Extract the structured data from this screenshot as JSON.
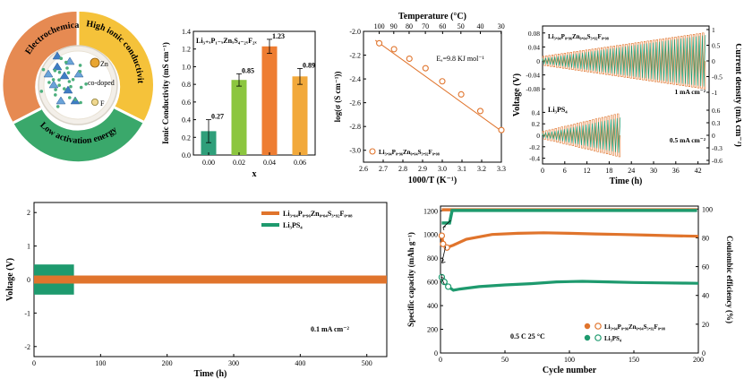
{
  "colors": {
    "orange": "#e0742c",
    "green": "#1e9a6e",
    "teal_dark": "#2a8a5e",
    "ring_orange": "#e68a52",
    "ring_yellow": "#f5c23a",
    "ring_green": "#3aa86b"
  },
  "schematic": {
    "ring_labels": [
      "Electrochemical stability",
      "High ionic conductivity",
      "Low activation energy"
    ],
    "dopant_zn": "Zn",
    "dopant_f": "F",
    "center_label": "co-doped"
  },
  "chart_data": [
    {
      "type": "bar",
      "inset_label": "Li₃₊ₓP₁₋ₓZnₓS₄₋₂ₓF₂ₓ",
      "xlabel": "x",
      "ylabel": "Ionic Conductivity (mS cm⁻¹)",
      "categories": [
        "0.00",
        "0.02",
        "0.04",
        "0.06"
      ],
      "values": [
        0.27,
        0.85,
        1.23,
        0.89
      ],
      "value_labels": [
        "0.27",
        "0.85",
        "1.23",
        "0.89"
      ],
      "errors": [
        0.13,
        0.07,
        0.08,
        0.09
      ],
      "ylim": [
        0.0,
        1.4
      ],
      "yticks": [
        "0.0",
        "0.2",
        "0.4",
        "0.6",
        "0.8",
        "1.0",
        "1.2",
        "1.4"
      ],
      "bar_colors": [
        "#2f9f7a",
        "#8cc63f",
        "#ee7d32",
        "#f2a93b"
      ]
    },
    {
      "type": "scatter",
      "xlabel": "1000/T (K⁻¹)",
      "ylabel": "log(σ (S cm⁻¹))",
      "top_xlabel": "Temperature (°C)",
      "top_ticks": [
        "100",
        "90",
        "80",
        "70",
        "60",
        "50",
        "40",
        "30"
      ],
      "xticks": [
        "2.6",
        "2.7",
        "2.8",
        "2.9",
        "3.0",
        "3.1",
        "3.2",
        "3.3"
      ],
      "yticks": [
        "-2.0",
        "-2.2",
        "-2.4",
        "-2.6",
        "-2.8",
        "-3.0"
      ],
      "xlim": [
        2.6,
        3.3
      ],
      "ylim": [
        -3.1,
        -2.0
      ],
      "annotation": "Eₐ=9.8 KJ mol⁻¹",
      "legend": "Li₃.₀₄P₀.₉₆Zn₀.₀₄S₃.₉₂F₀.₀₈",
      "x": [
        2.68,
        2.755,
        2.833,
        2.915,
        3.0,
        3.096,
        3.193,
        3.3
      ],
      "y": [
        -2.1,
        -2.15,
        -2.23,
        -2.31,
        -2.42,
        -2.53,
        -2.67,
        -2.83
      ],
      "fit": [
        [
          2.66,
          -2.075
        ],
        [
          3.31,
          -2.85
        ]
      ]
    },
    {
      "type": "line",
      "xlabel": "Time (h)",
      "ylabel": "Voltage (V)",
      "ylabel_right": "Current density (mA cm⁻²)",
      "xticks": [
        "0",
        "6",
        "12",
        "18",
        "24",
        "30",
        "36",
        "42"
      ],
      "xlim": [
        0,
        45
      ],
      "top": {
        "label": "Li₃.₀₄P₀.₉₆Zn₀.₀₄S₃.₉₂F₀.₀₈",
        "yticks": [
          "0.08",
          "0.04",
          "0",
          "-0.04",
          "-0.08"
        ],
        "ylim": [
          -0.1,
          0.1
        ],
        "right_ticks": [
          "1",
          "0.5",
          "0",
          "-0.5",
          "-1"
        ],
        "current_label": "1 mA cm⁻²",
        "voltage_max": 0.074,
        "current_max_fraction": 0.8,
        "duration_h": 44
      },
      "bottom": {
        "label": "Li₃PS₄",
        "yticks": [
          "0.4",
          "0.2",
          "0",
          "-0.2",
          "-0.4"
        ],
        "ylim": [
          -0.5,
          0.5
        ],
        "right_ticks": [
          "0.6",
          "0.3",
          "0",
          "-0.3",
          "-0.6"
        ],
        "current_label": "0.5 mA cm⁻²",
        "voltage_max": 0.31,
        "duration_h": 21
      }
    },
    {
      "type": "line",
      "xlabel": "Time (h)",
      "ylabel": "Voltage (V)",
      "xticks": [
        "0",
        "100",
        "200",
        "300",
        "400",
        "500"
      ],
      "yticks": [
        "2",
        "1",
        "0",
        "-1",
        "-2"
      ],
      "xlim": [
        0,
        530
      ],
      "ylim": [
        -2.3,
        2.3
      ],
      "annotation": "0.1 mA cm⁻²",
      "series": [
        {
          "name": "Li₃.₀₄P₀.₉₆Zn₀.₀₄S₃.₉₂F₀.₀₈",
          "amplitude": 0.12,
          "end_h": 530
        },
        {
          "name": "Li₃PS₄",
          "amplitude": 0.45,
          "end_h": 60
        }
      ]
    },
    {
      "type": "scatter",
      "xlabel": "Cycle number",
      "ylabel": "Specific capacity (mAh g⁻¹)",
      "ylabel_right": "Coulombic efficiency (%)",
      "xticks": [
        "0",
        "50",
        "100",
        "150",
        "200"
      ],
      "yticks": [
        "0",
        "200",
        "400",
        "600",
        "800",
        "1000",
        "1200"
      ],
      "right_ticks": [
        "0",
        "20",
        "40",
        "60",
        "80",
        "100"
      ],
      "xlim": [
        0,
        200
      ],
      "ylim": [
        0,
        1240
      ],
      "annotation": "0.5 C    25 °C",
      "series": [
        {
          "name": "Li₃.₀₄P₀.₉₆Zn₀.₀₄S₃.₉₂F₀.₀₈",
          "capacity": [
            [
              1,
              990
            ],
            [
              2,
              920
            ],
            [
              5,
              890
            ],
            [
              10,
              910
            ],
            [
              20,
              960
            ],
            [
              40,
              1000
            ],
            [
              60,
              1010
            ],
            [
              80,
              1015
            ],
            [
              100,
              1010
            ],
            [
              120,
              1005
            ],
            [
              140,
              1000
            ],
            [
              160,
              995
            ],
            [
              180,
              990
            ],
            [
              200,
              985
            ]
          ],
          "efficiency": 99.5
        },
        {
          "name": "Li₃PS₄",
          "capacity": [
            [
              1,
              640
            ],
            [
              3,
              600
            ],
            [
              6,
              560
            ],
            [
              10,
              530
            ],
            [
              15,
              540
            ],
            [
              30,
              560
            ],
            [
              50,
              575
            ],
            [
              70,
              585
            ],
            [
              90,
              600
            ],
            [
              110,
              605
            ],
            [
              130,
              600
            ],
            [
              150,
              595
            ],
            [
              170,
              592
            ],
            [
              190,
              590
            ],
            [
              200,
              588
            ]
          ],
          "efficiency": 99.0
        }
      ]
    }
  ]
}
